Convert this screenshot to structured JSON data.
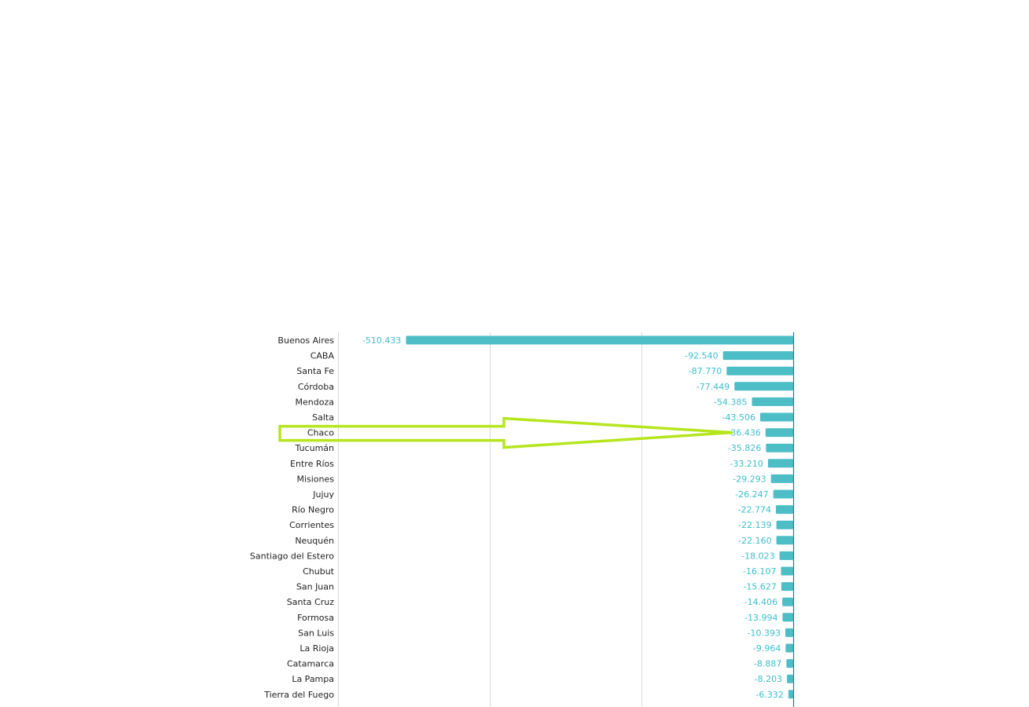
{
  "chart_data": {
    "type": "bar",
    "orientation": "horizontal",
    "categories": [
      "Buenos Aires",
      "CABA",
      "Santa Fe",
      "Córdoba",
      "Mendoza",
      "Salta",
      "Chaco",
      "Tucumán",
      "Entre Ríos",
      "Misiones",
      "Jujuy",
      "Río Negro",
      "Corrientes",
      "Neuquén",
      "Santiago del Estero",
      "Chubut",
      "San Juan",
      "Santa Cruz",
      "Formosa",
      "San Luis",
      "La Rioja",
      "Catamarca",
      "La Pampa",
      "Tierra del Fuego"
    ],
    "values": [
      -510433,
      -92540,
      -87770,
      -77449,
      -54385,
      -43506,
      -36436,
      -35826,
      -33210,
      -29293,
      -26247,
      -22774,
      -22139,
      -22160,
      -18023,
      -16107,
      -15627,
      -14406,
      -13994,
      -10393,
      -9964,
      -8887,
      -8203,
      -6332
    ],
    "value_labels": [
      "-510.433",
      "-92.540",
      "-87.770",
      "-77.449",
      "-54.385",
      "-43.506",
      "-36.436",
      "-35.826",
      "-33.210",
      "-29.293",
      "-26.247",
      "-22.774",
      "-22.139",
      "-22.160",
      "-18.023",
      "-16.107",
      "-15.627",
      "-14.406",
      "-13.994",
      "-10.393",
      "-9.964",
      "-8.887",
      "-8.203",
      "-6.332"
    ],
    "xlim": [
      -600000,
      0
    ],
    "grid": true,
    "bar_color": "#4dbec6",
    "label_color": "#3bbfcc",
    "axis_color": "#1a73c7",
    "title": "",
    "xlabel": "",
    "ylabel": ""
  },
  "annotation": {
    "type": "arrow",
    "points_to": "Chaco",
    "color": "#b5e61d"
  }
}
